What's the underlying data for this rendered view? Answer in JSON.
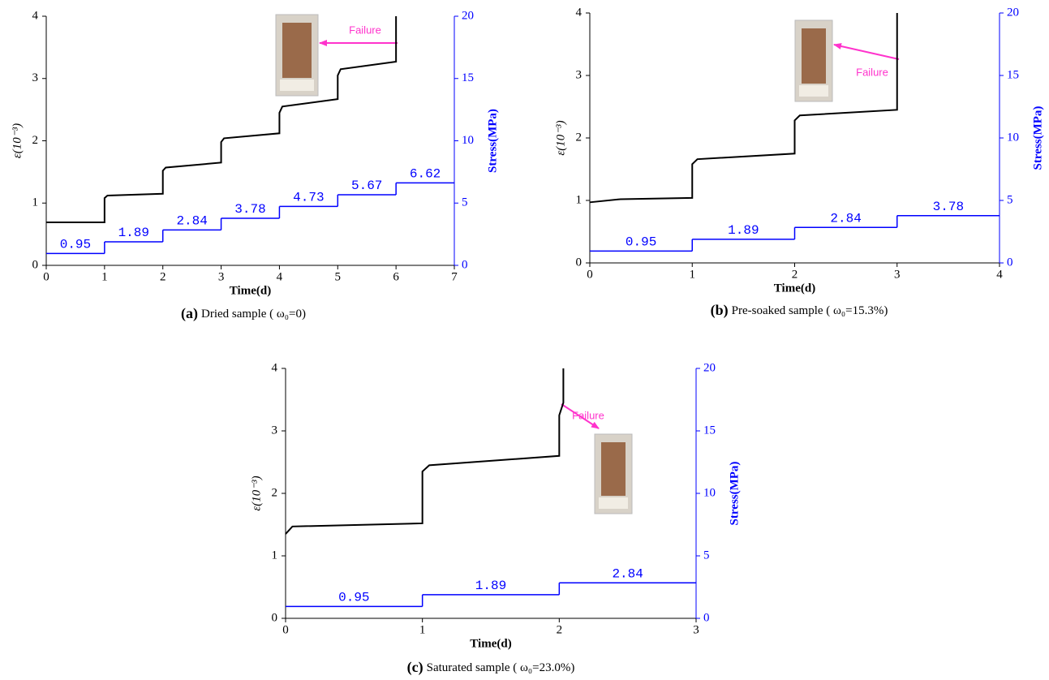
{
  "chart_data": [
    {
      "type": "line",
      "xlabel": "Time(d)",
      "ylabel": "ε(10⁻³)",
      "y2label": "Stress(MPa)",
      "caption_label": "(a)",
      "caption": "Dried sample ( ω₀=0)",
      "annotation": "Failure",
      "annotation_color": "#ff33cc",
      "xlim": [
        0,
        7
      ],
      "xticks": [
        0,
        1,
        2,
        3,
        4,
        5,
        6,
        7
      ],
      "ylim": [
        0,
        4
      ],
      "yticks": [
        0,
        1,
        2,
        3,
        4
      ],
      "y2lim": [
        0,
        20
      ],
      "y2ticks": [
        0,
        5,
        10,
        15,
        20
      ],
      "series": [
        {
          "color": "#000000",
          "x": [
            0,
            1,
            1,
            1.05,
            2,
            2,
            2.05,
            3,
            3,
            3.05,
            4,
            4,
            4.05,
            5,
            5,
            5.05,
            6,
            6
          ],
          "values": [
            0.69,
            0.69,
            1.08,
            1.12,
            1.15,
            1.52,
            1.57,
            1.65,
            1.98,
            2.04,
            2.12,
            2.45,
            2.55,
            2.67,
            3.05,
            3.15,
            3.27,
            4.0
          ]
        },
        {
          "color": "#0000ff",
          "axis": "y2",
          "step": true,
          "x": [
            0,
            1,
            2,
            3,
            4,
            5,
            6
          ],
          "values": [
            0.95,
            1.89,
            2.84,
            3.78,
            4.73,
            5.67,
            6.62
          ]
        }
      ]
    },
    {
      "type": "line",
      "xlabel": "Time(d)",
      "ylabel": "ε(10⁻³)",
      "y2label": "Stress(MPa)",
      "caption_label": "(b)",
      "caption": "Pre-soaked sample  ( ω₀=15.3%)",
      "annotation": "Failure",
      "annotation_color": "#ff33cc",
      "xlim": [
        0,
        4
      ],
      "xticks": [
        0,
        1,
        2,
        3,
        4
      ],
      "ylim": [
        0,
        4
      ],
      "yticks": [
        0,
        1,
        2,
        3,
        4
      ],
      "y2lim": [
        0,
        20
      ],
      "y2ticks": [
        0,
        5,
        10,
        15,
        20
      ],
      "series": [
        {
          "color": "#000000",
          "x": [
            0,
            0.3,
            1,
            1,
            1.05,
            2,
            2,
            2.05,
            3,
            3
          ],
          "values": [
            0.97,
            1.02,
            1.04,
            1.58,
            1.66,
            1.75,
            2.28,
            2.36,
            2.45,
            4.0
          ]
        },
        {
          "color": "#0000ff",
          "axis": "y2",
          "step": true,
          "x": [
            0,
            1,
            2,
            3
          ],
          "values": [
            0.95,
            1.89,
            2.84,
            3.78
          ]
        }
      ]
    },
    {
      "type": "line",
      "xlabel": "Time(d)",
      "ylabel": "ε(10⁻³)",
      "y2label": "Stress(MPa)",
      "caption_label": "(c)",
      "caption": "Saturated sample  ( ω₀=23.0%)",
      "annotation": "Failure",
      "annotation_color": "#ff33cc",
      "xlim": [
        0,
        3
      ],
      "xticks": [
        0,
        1,
        2,
        3
      ],
      "ylim": [
        0,
        4
      ],
      "yticks": [
        0,
        1,
        2,
        3,
        4
      ],
      "y2lim": [
        0,
        20
      ],
      "y2ticks": [
        0,
        5,
        10,
        15,
        20
      ],
      "series": [
        {
          "color": "#000000",
          "x": [
            0,
            0.05,
            1,
            1,
            1.05,
            2,
            2,
            2.03,
            2.03
          ],
          "values": [
            1.35,
            1.47,
            1.52,
            2.35,
            2.45,
            2.6,
            3.25,
            3.45,
            4.0
          ]
        },
        {
          "color": "#0000ff",
          "axis": "y2",
          "step": true,
          "x": [
            0,
            1,
            2
          ],
          "values": [
            0.95,
            1.89,
            2.84
          ]
        }
      ]
    }
  ]
}
